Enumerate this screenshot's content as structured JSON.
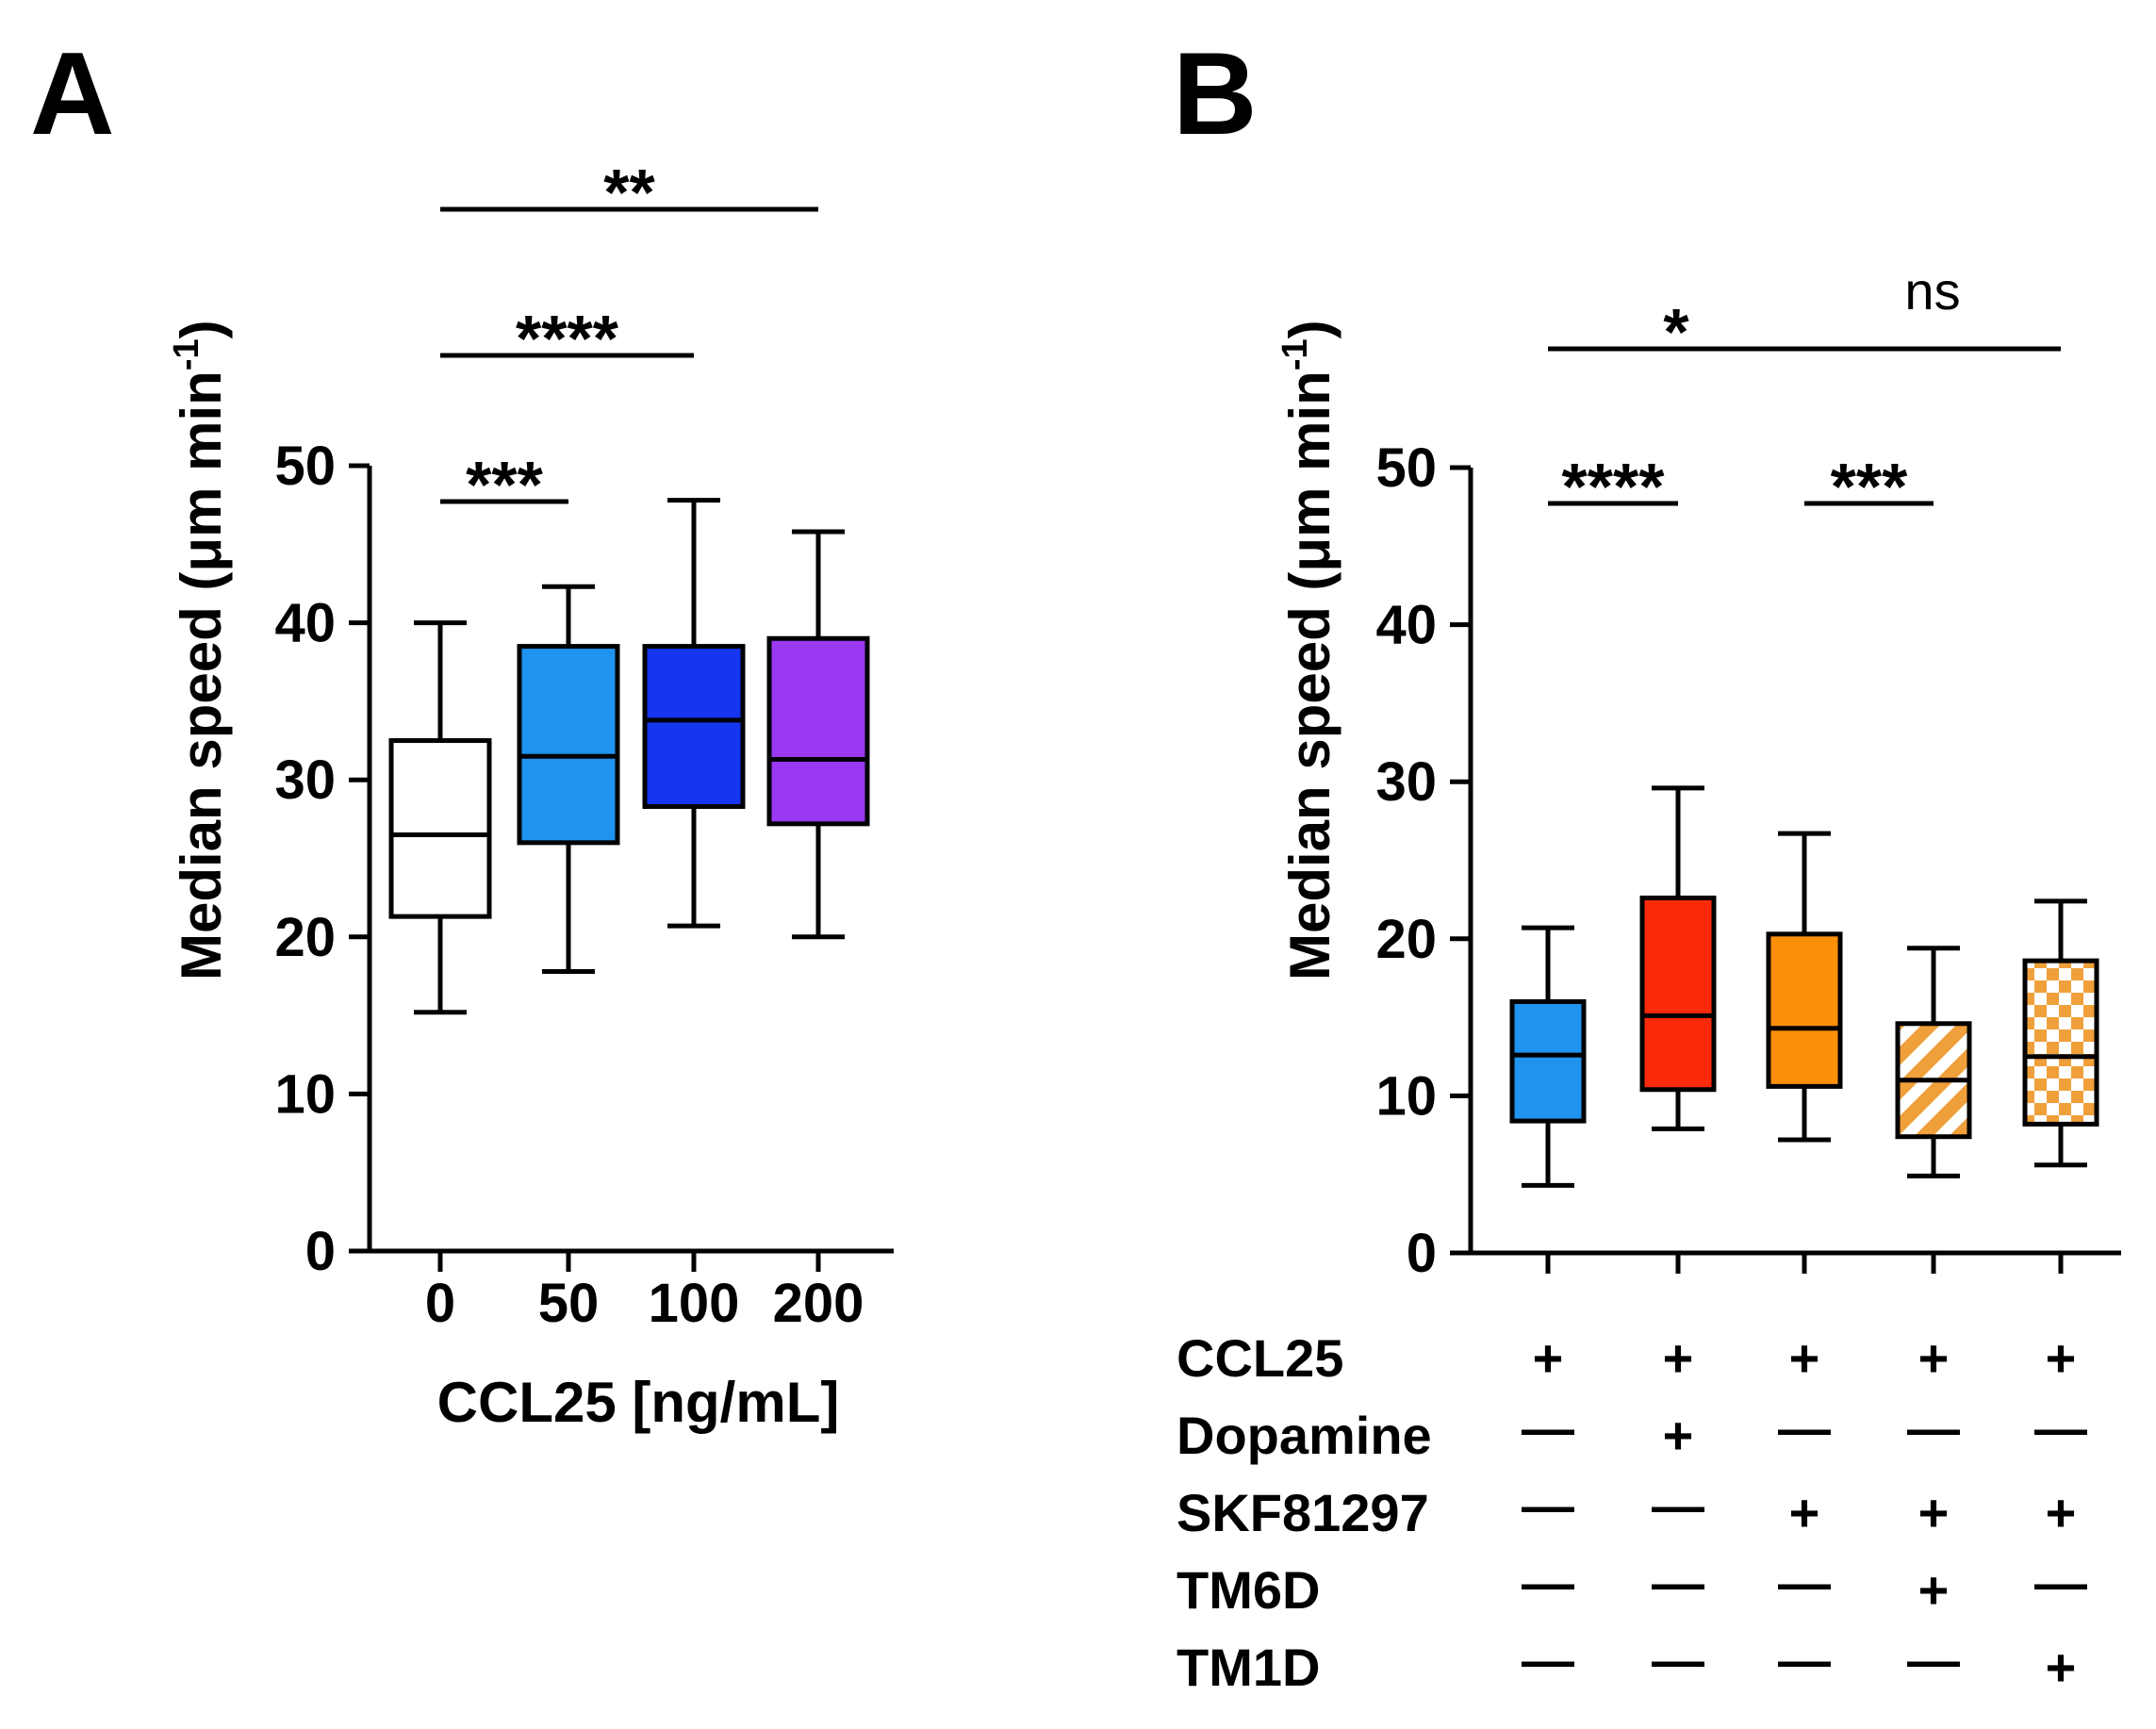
{
  "chart_data": [
    {
      "panel": "A",
      "type": "box",
      "ylabel": "Median speed (μm min",
      "ylabel_superscript": "-1",
      "ylabel_close": ")",
      "xlabel": "CCL25 [ng/mL]",
      "ylim": [
        0,
        50
      ],
      "yticks": [
        "0",
        "10",
        "20",
        "30",
        "40",
        "50"
      ],
      "categories": [
        "0",
        "50",
        "100",
        "200"
      ],
      "boxes": [
        {
          "category": "0",
          "whisker_low": 15.2,
          "q1": 21.3,
          "median": 26.5,
          "q3": 32.5,
          "whisker_high": 40.0,
          "color": "#ffffff",
          "pattern": "none"
        },
        {
          "category": "50",
          "whisker_low": 17.8,
          "q1": 26.0,
          "median": 31.5,
          "q3": 38.5,
          "whisker_high": 42.3,
          "color": "#1f93ee",
          "pattern": "none"
        },
        {
          "category": "100",
          "whisker_low": 20.7,
          "q1": 28.3,
          "median": 33.8,
          "q3": 38.5,
          "whisker_high": 47.8,
          "color": "#1535ef",
          "pattern": "none"
        },
        {
          "category": "200",
          "whisker_low": 20.0,
          "q1": 27.2,
          "median": 31.3,
          "q3": 39.0,
          "whisker_high": 45.8,
          "color": "#9a38f2",
          "pattern": "none"
        }
      ],
      "significance": [
        {
          "from": 0,
          "to": 1,
          "label": "***",
          "level": 0
        },
        {
          "from": 0,
          "to": 2,
          "label": "****",
          "level": 1
        },
        {
          "from": 0,
          "to": 3,
          "label": "**",
          "level": 2
        }
      ]
    },
    {
      "panel": "B",
      "type": "box",
      "ylabel": "Median speed (μm min",
      "ylabel_superscript": "-1",
      "ylabel_close": ")",
      "ylim": [
        0,
        50
      ],
      "yticks": [
        "0",
        "10",
        "20",
        "30",
        "40",
        "50"
      ],
      "boxes": [
        {
          "whisker_low": 4.3,
          "q1": 8.4,
          "median": 12.6,
          "q3": 16.0,
          "whisker_high": 20.7,
          "color": "#1f93ee",
          "pattern": "none"
        },
        {
          "whisker_low": 7.9,
          "q1": 10.4,
          "median": 15.1,
          "q3": 22.6,
          "whisker_high": 29.6,
          "color": "#fb2a0b",
          "pattern": "none"
        },
        {
          "whisker_low": 7.2,
          "q1": 10.6,
          "median": 14.3,
          "q3": 20.3,
          "whisker_high": 26.7,
          "color": "#fb8f08",
          "pattern": "none"
        },
        {
          "whisker_low": 4.9,
          "q1": 7.4,
          "median": 11.0,
          "q3": 14.6,
          "whisker_high": 19.4,
          "color": "#f0a03a",
          "pattern": "stripes"
        },
        {
          "whisker_low": 5.6,
          "q1": 8.2,
          "median": 12.5,
          "q3": 18.6,
          "whisker_high": 22.4,
          "color": "#f0a03a",
          "pattern": "checker"
        }
      ],
      "significance": [
        {
          "from": 0,
          "to": 1,
          "label": "****",
          "level": 0,
          "style": "bold"
        },
        {
          "from": 2,
          "to": 3,
          "label": "***",
          "level": 0,
          "style": "bold"
        },
        {
          "from": 0,
          "to": 2,
          "label": "*",
          "level": 1,
          "style": "bold"
        },
        {
          "from": 2,
          "to": 4,
          "label": "ns",
          "level": 1,
          "style": "normal"
        }
      ],
      "conditions": [
        {
          "name": "CCL25",
          "marks": [
            "+",
            "+",
            "+",
            "+",
            "+"
          ]
        },
        {
          "name": "Dopamine",
          "marks": [
            "—",
            "+",
            "—",
            "—",
            "—"
          ]
        },
        {
          "name": "SKF81297",
          "marks": [
            "—",
            "—",
            "+",
            "+",
            "+"
          ]
        },
        {
          "name": "TM6D",
          "marks": [
            "—",
            "—",
            "—",
            "+",
            "—"
          ]
        },
        {
          "name": "TM1D",
          "marks": [
            "—",
            "—",
            "—",
            "—",
            "+"
          ]
        }
      ]
    }
  ]
}
